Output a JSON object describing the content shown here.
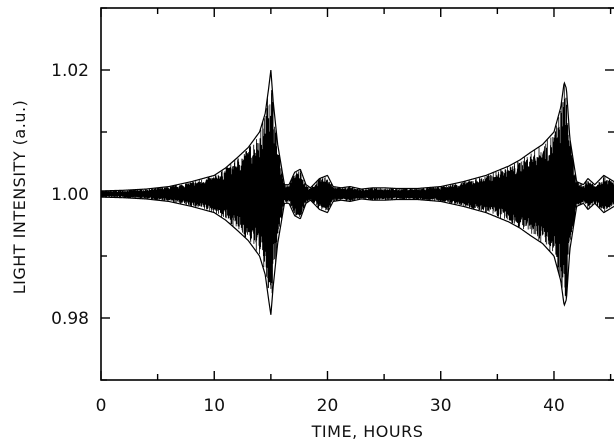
{
  "chart_data": {
    "type": "line",
    "title": "",
    "xlabel": "TIME, HOURS",
    "ylabel": "LIGHT INTENSITY (a.u.)",
    "xlim": [
      0,
      45.3
    ],
    "ylim": [
      0.97,
      1.03
    ],
    "x_ticks": [
      0,
      10,
      20,
      30,
      40
    ],
    "x_tick_labels": [
      "0",
      "10",
      "20",
      "30",
      "40"
    ],
    "y_ticks": [
      0.98,
      1.0,
      1.02
    ],
    "y_tick_labels": [
      "0.98",
      "1.00",
      "1.02"
    ],
    "grid": false,
    "line_color": "#000000",
    "series": [
      {
        "style": "oscillation-envelope",
        "baseline": 1.0,
        "envelope_x": [
          0,
          2,
          4,
          6,
          8,
          10,
          11,
          12,
          13,
          14,
          14.5,
          14.8,
          15.0,
          15.2,
          15.6,
          16.2,
          16.6,
          17.1,
          17.6,
          18.1,
          18.5,
          19.3,
          20.0,
          20.5,
          21.2,
          22.0,
          23.0,
          24.0,
          25.0,
          26.0,
          28.0,
          30.0,
          32.0,
          34.0,
          36.0,
          37.0,
          38.0,
          39.0,
          40.0,
          40.6,
          40.9,
          41.1,
          41.4,
          42.0,
          42.6,
          43.0,
          43.6,
          44.4,
          45.3
        ],
        "envelope_upper": [
          1.0005,
          1.0006,
          1.0008,
          1.0012,
          1.002,
          1.003,
          1.0042,
          1.0058,
          1.0075,
          1.01,
          1.013,
          1.017,
          1.02,
          1.015,
          1.008,
          1.0015,
          1.0015,
          1.0035,
          1.004,
          1.0015,
          1.001,
          1.0025,
          1.003,
          1.0012,
          1.001,
          1.0012,
          1.0008,
          1.001,
          1.001,
          1.0009,
          1.0009,
          1.0012,
          1.002,
          1.003,
          1.0045,
          1.0055,
          1.0068,
          1.008,
          1.01,
          1.014,
          1.018,
          1.017,
          1.009,
          1.002,
          1.0015,
          1.0025,
          1.0015,
          1.003,
          1.002
        ],
        "envelope_lower": [
          0.9995,
          0.9994,
          0.9992,
          0.9988,
          0.998,
          0.997,
          0.9958,
          0.9942,
          0.9925,
          0.99,
          0.987,
          0.983,
          0.9805,
          0.985,
          0.992,
          0.9985,
          0.9985,
          0.9965,
          0.996,
          0.9985,
          0.999,
          0.9975,
          0.997,
          0.9988,
          0.999,
          0.9988,
          0.9992,
          0.999,
          0.999,
          0.9991,
          0.9991,
          0.9988,
          0.998,
          0.997,
          0.9955,
          0.9945,
          0.9932,
          0.992,
          0.99,
          0.986,
          0.982,
          0.983,
          0.991,
          0.998,
          0.9985,
          0.9975,
          0.9985,
          0.997,
          0.998
        ]
      }
    ]
  }
}
